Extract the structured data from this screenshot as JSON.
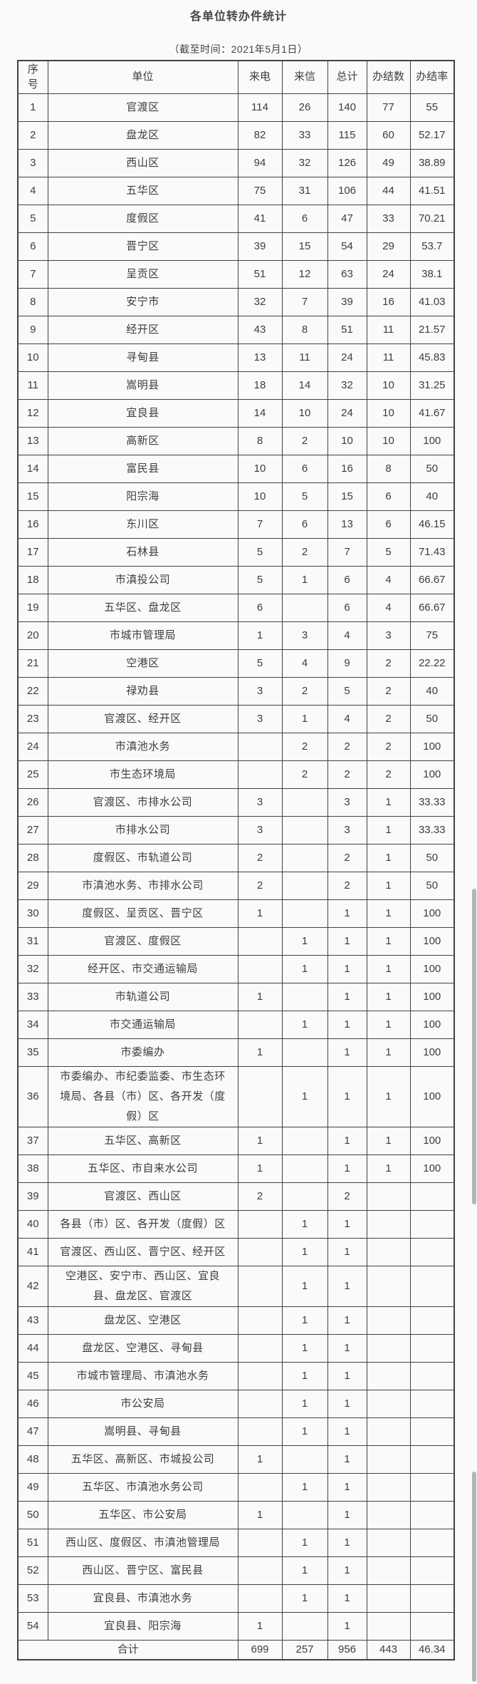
{
  "page": {
    "title": "各单位转办件统计",
    "subtitle": "（截至时间：2021年5月1日）"
  },
  "table": {
    "headers": [
      "序号",
      "单位",
      "来电",
      "来信",
      "总计",
      "办结数",
      "办结率"
    ],
    "rows": [
      [
        "1",
        "官渡区",
        "114",
        "26",
        "140",
        "77",
        "55"
      ],
      [
        "2",
        "盘龙区",
        "82",
        "33",
        "115",
        "60",
        "52.17"
      ],
      [
        "3",
        "西山区",
        "94",
        "32",
        "126",
        "49",
        "38.89"
      ],
      [
        "4",
        "五华区",
        "75",
        "31",
        "106",
        "44",
        "41.51"
      ],
      [
        "5",
        "度假区",
        "41",
        "6",
        "47",
        "33",
        "70.21"
      ],
      [
        "6",
        "晋宁区",
        "39",
        "15",
        "54",
        "29",
        "53.7"
      ],
      [
        "7",
        "呈贡区",
        "51",
        "12",
        "63",
        "24",
        "38.1"
      ],
      [
        "8",
        "安宁市",
        "32",
        "7",
        "39",
        "16",
        "41.03"
      ],
      [
        "9",
        "经开区",
        "43",
        "8",
        "51",
        "11",
        "21.57"
      ],
      [
        "10",
        "寻甸县",
        "13",
        "11",
        "24",
        "11",
        "45.83"
      ],
      [
        "11",
        "嵩明县",
        "18",
        "14",
        "32",
        "10",
        "31.25"
      ],
      [
        "12",
        "宜良县",
        "14",
        "10",
        "24",
        "10",
        "41.67"
      ],
      [
        "13",
        "高新区",
        "8",
        "2",
        "10",
        "10",
        "100"
      ],
      [
        "14",
        "富民县",
        "10",
        "6",
        "16",
        "8",
        "50"
      ],
      [
        "15",
        "阳宗海",
        "10",
        "5",
        "15",
        "6",
        "40"
      ],
      [
        "16",
        "东川区",
        "7",
        "6",
        "13",
        "6",
        "46.15"
      ],
      [
        "17",
        "石林县",
        "5",
        "2",
        "7",
        "5",
        "71.43"
      ],
      [
        "18",
        "市滇投公司",
        "5",
        "1",
        "6",
        "4",
        "66.67"
      ],
      [
        "19",
        "五华区、盘龙区",
        "6",
        "",
        "6",
        "4",
        "66.67"
      ],
      [
        "20",
        "市城市管理局",
        "1",
        "3",
        "4",
        "3",
        "75"
      ],
      [
        "21",
        "空港区",
        "5",
        "4",
        "9",
        "2",
        "22.22"
      ],
      [
        "22",
        "禄劝县",
        "3",
        "2",
        "5",
        "2",
        "40"
      ],
      [
        "23",
        "官渡区、经开区",
        "3",
        "1",
        "4",
        "2",
        "50"
      ],
      [
        "24",
        "市滇池水务",
        "",
        "2",
        "2",
        "2",
        "100"
      ],
      [
        "25",
        "市生态环境局",
        "",
        "2",
        "2",
        "2",
        "100"
      ],
      [
        "26",
        "官渡区、市排水公司",
        "3",
        "",
        "3",
        "1",
        "33.33"
      ],
      [
        "27",
        "市排水公司",
        "3",
        "",
        "3",
        "1",
        "33.33"
      ],
      [
        "28",
        "度假区、市轨道公司",
        "2",
        "",
        "2",
        "1",
        "50"
      ],
      [
        "29",
        "市滇池水务、市排水公司",
        "2",
        "",
        "2",
        "1",
        "50"
      ],
      [
        "30",
        "度假区、呈贡区、晋宁区",
        "1",
        "",
        "1",
        "1",
        "100"
      ],
      [
        "31",
        "官渡区、度假区",
        "",
        "1",
        "1",
        "1",
        "100"
      ],
      [
        "32",
        "经开区、市交通运输局",
        "",
        "1",
        "1",
        "1",
        "100"
      ],
      [
        "33",
        "市轨道公司",
        "1",
        "",
        "1",
        "1",
        "100"
      ],
      [
        "34",
        "市交通运输局",
        "",
        "1",
        "1",
        "1",
        "100"
      ],
      [
        "35",
        "市委编办",
        "1",
        "",
        "1",
        "1",
        "100"
      ],
      [
        "36",
        "市委编办、市纪委监委、市生态环境局、各县（市）区、各开发（度假）区",
        "",
        "1",
        "1",
        "1",
        "100"
      ],
      [
        "37",
        "五华区、高新区",
        "1",
        "",
        "1",
        "1",
        "100"
      ],
      [
        "38",
        "五华区、市自来水公司",
        "1",
        "",
        "1",
        "1",
        "100"
      ],
      [
        "39",
        "官渡区、西山区",
        "2",
        "",
        "2",
        "",
        ""
      ],
      [
        "40",
        "各县（市）区、各开发（度假）区",
        "",
        "1",
        "1",
        "",
        ""
      ],
      [
        "41",
        "官渡区、西山区、晋宁区、经开区",
        "",
        "1",
        "1",
        "",
        ""
      ],
      [
        "42",
        "空港区、安宁市、西山区、宜良县、盘龙区、官渡区",
        "",
        "1",
        "1",
        "",
        ""
      ],
      [
        "43",
        "盘龙区、空港区",
        "",
        "1",
        "1",
        "",
        ""
      ],
      [
        "44",
        "盘龙区、空港区、寻甸县",
        "",
        "1",
        "1",
        "",
        ""
      ],
      [
        "45",
        "市城市管理局、市滇池水务",
        "",
        "1",
        "1",
        "",
        ""
      ],
      [
        "46",
        "市公安局",
        "",
        "1",
        "1",
        "",
        ""
      ],
      [
        "47",
        "嵩明县、寻甸县",
        "",
        "1",
        "1",
        "",
        ""
      ],
      [
        "48",
        "五华区、高新区、市城投公司",
        "1",
        "",
        "1",
        "",
        ""
      ],
      [
        "49",
        "五华区、市滇池水务公司",
        "",
        "1",
        "1",
        "",
        ""
      ],
      [
        "50",
        "五华区、市公安局",
        "1",
        "",
        "1",
        "",
        ""
      ],
      [
        "51",
        "西山区、度假区、市滇池管理局",
        "",
        "1",
        "1",
        "",
        ""
      ],
      [
        "52",
        "西山区、晋宁区、富民县",
        "",
        "1",
        "1",
        "",
        ""
      ],
      [
        "53",
        "宜良县、市滇池水务",
        "",
        "1",
        "1",
        "",
        ""
      ],
      [
        "54",
        "宜良县、阳宗海",
        "1",
        "",
        "1",
        "",
        ""
      ]
    ],
    "total": [
      "合计",
      "699",
      "257",
      "956",
      "443",
      "46.34"
    ]
  },
  "colors": {
    "text": "#3d3d3d",
    "border": "#424242",
    "background": "#fafafa",
    "scrollbar": "#b5b5b5"
  }
}
